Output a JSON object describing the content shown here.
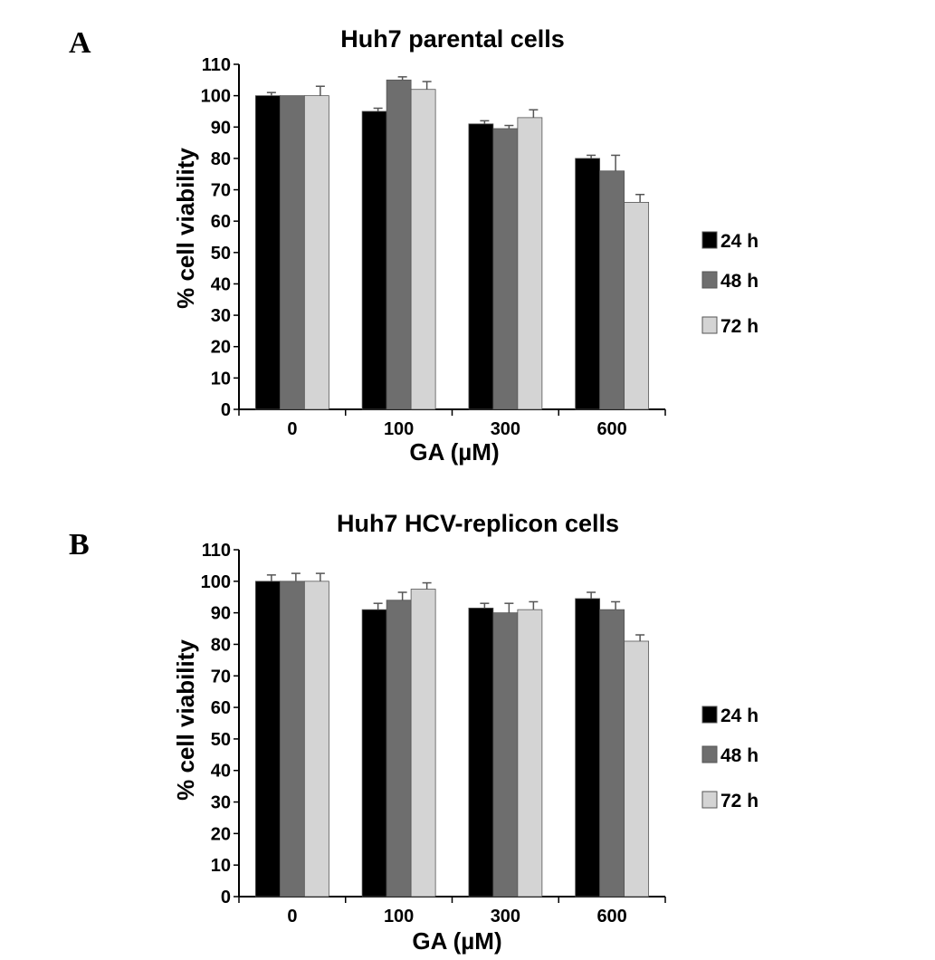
{
  "panels": [
    {
      "letter": "A",
      "chart": {
        "type": "bar",
        "title": "Huh7 parental cells",
        "xlabel": "GA (µM)",
        "ylabel": "% cell viability",
        "categories": [
          "0",
          "100",
          "300",
          "600"
        ],
        "ylim": [
          0,
          110
        ],
        "yticks": [
          "0",
          "10",
          "20",
          "30",
          "40",
          "50",
          "60",
          "70",
          "80",
          "90",
          "100",
          "110"
        ],
        "series": [
          {
            "name": "24 h",
            "values": [
              100,
              95,
              91,
              80
            ],
            "errors": [
              1,
              1,
              1,
              1
            ]
          },
          {
            "name": "48 h",
            "values": [
              100,
              105,
              89.5,
              76
            ],
            "errors": [
              0,
              1,
              1,
              5
            ]
          },
          {
            "name": "72 h",
            "values": [
              100,
              102,
              93,
              66
            ],
            "errors": [
              3,
              2.5,
              2.5,
              2.5
            ]
          }
        ]
      }
    },
    {
      "letter": "B",
      "chart": {
        "type": "bar",
        "title": "Huh7 HCV-replicon cells",
        "xlabel": "GA (µM)",
        "ylabel": "% cell viability",
        "categories": [
          "0",
          "100",
          "300",
          "600"
        ],
        "ylim": [
          0,
          110
        ],
        "yticks": [
          "0",
          "10",
          "20",
          "30",
          "40",
          "50",
          "60",
          "70",
          "80",
          "90",
          "100",
          "110"
        ],
        "series": [
          {
            "name": "24 h",
            "values": [
              100,
              91,
              91.5,
              94.5
            ],
            "errors": [
              2,
              2,
              1.5,
              2
            ]
          },
          {
            "name": "48 h",
            "values": [
              100,
              94,
              90,
              91
            ],
            "errors": [
              2.5,
              2.5,
              3,
              2.5
            ]
          },
          {
            "name": "72 h",
            "values": [
              100,
              97.5,
              91,
              81
            ],
            "errors": [
              2.5,
              2,
              2.5,
              2
            ]
          }
        ]
      }
    }
  ],
  "colors": {
    "series": [
      "#000000",
      "#6e6e6e",
      "#d4d4d4"
    ],
    "axis": "#000000",
    "error_bar": "#555555"
  },
  "chart_data": [
    {
      "type": "bar",
      "title": "Huh7 parental cells",
      "xlabel": "GA (µM)",
      "ylabel": "% cell viability",
      "categories": [
        "0",
        "100",
        "300",
        "600"
      ],
      "ylim": [
        0,
        110
      ],
      "grid": false,
      "legend": "right",
      "series": [
        {
          "name": "24 h",
          "values": [
            100,
            95,
            91,
            80
          ]
        },
        {
          "name": "48 h",
          "values": [
            100,
            105,
            89.5,
            76
          ]
        },
        {
          "name": "72 h",
          "values": [
            100,
            102,
            93,
            66
          ]
        }
      ]
    },
    {
      "type": "bar",
      "title": "Huh7 HCV-replicon cells",
      "xlabel": "GA (µM)",
      "ylabel": "% cell viability",
      "categories": [
        "0",
        "100",
        "300",
        "600"
      ],
      "ylim": [
        0,
        110
      ],
      "grid": false,
      "legend": "right",
      "series": [
        {
          "name": "24 h",
          "values": [
            100,
            91,
            91.5,
            94.5
          ]
        },
        {
          "name": "48 h",
          "values": [
            100,
            94,
            90,
            91
          ]
        },
        {
          "name": "72 h",
          "values": [
            100,
            97.5,
            91,
            81
          ]
        }
      ]
    }
  ]
}
